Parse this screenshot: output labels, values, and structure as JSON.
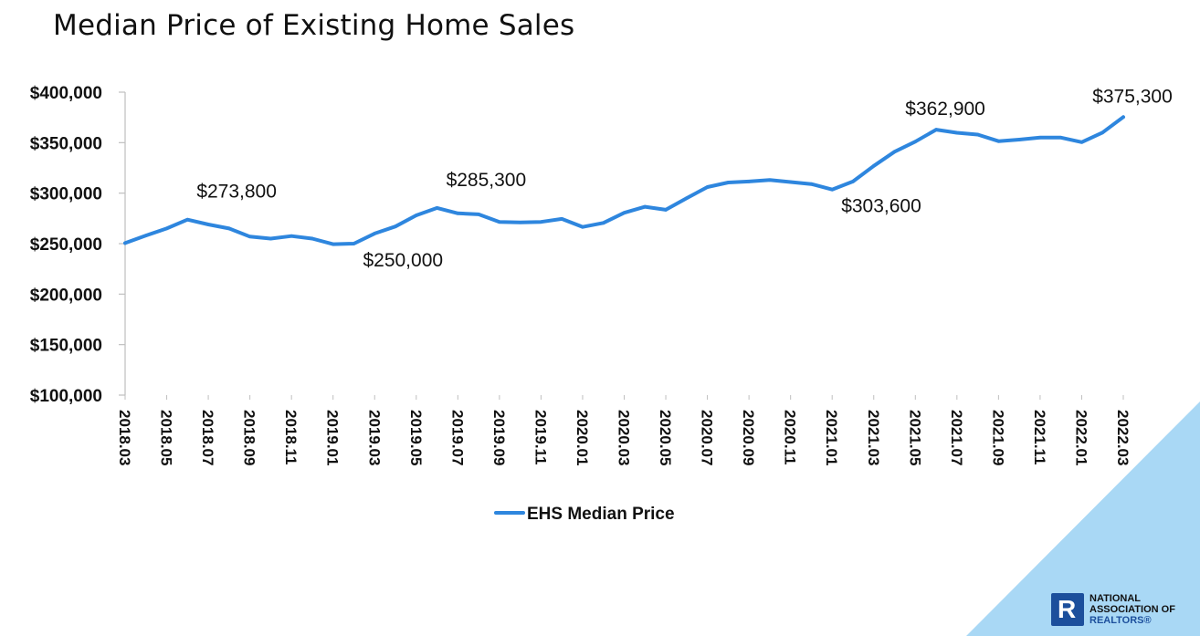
{
  "title": "Median Price of Existing Home Sales",
  "colors": {
    "series": "#2e86de",
    "corner": "#a9d8f5",
    "logo": "#1c4f9c",
    "logo_text_dark": "#111111",
    "logo_text_blue": "#1c4f9c"
  },
  "logo": {
    "line1": "NATIONAL",
    "line2": "ASSOCIATION OF",
    "line3": "REALTORS®"
  },
  "chart_data": {
    "type": "line",
    "title": "Median Price of Existing Home Sales",
    "ylim": [
      100000,
      400000
    ],
    "yticks": [
      {
        "value": 400000,
        "label": "$400,000"
      },
      {
        "value": 350000,
        "label": "$350,000"
      },
      {
        "value": 300000,
        "label": "$300,000"
      },
      {
        "value": 250000,
        "label": "$250,000"
      },
      {
        "value": 200000,
        "label": "$200,000"
      },
      {
        "value": 150000,
        "label": "$150,000"
      },
      {
        "value": 100000,
        "label": "$100,000"
      }
    ],
    "x": [
      "2018.03",
      "2018.04",
      "2018.05",
      "2018.06",
      "2018.07",
      "2018.08",
      "2018.09",
      "2018.10",
      "2018.11",
      "2018.12",
      "2019.01",
      "2019.02",
      "2019.03",
      "2019.04",
      "2019.05",
      "2019.06",
      "2019.07",
      "2019.08",
      "2019.09",
      "2019.10",
      "2019.11",
      "2019.12",
      "2020.01",
      "2020.02",
      "2020.03",
      "2020.04",
      "2020.05",
      "2020.06",
      "2020.07",
      "2020.08",
      "2020.09",
      "2020.10",
      "2020.11",
      "2020.12",
      "2021.01",
      "2021.02",
      "2021.03",
      "2021.04",
      "2021.05",
      "2021.06",
      "2021.07",
      "2021.08",
      "2021.09",
      "2021.10",
      "2021.11",
      "2021.12",
      "2022.01",
      "2022.02",
      "2022.03"
    ],
    "xtick_labels": [
      "2018.03",
      "2018.05",
      "2018.07",
      "2018.09",
      "2018.11",
      "2019.01",
      "2019.03",
      "2019.05",
      "2019.07",
      "2019.09",
      "2019.11",
      "2020.01",
      "2020.03",
      "2020.05",
      "2020.07",
      "2020.09",
      "2020.11",
      "2021.01",
      "2021.03",
      "2021.05",
      "2021.07",
      "2021.09",
      "2021.11",
      "2022.01",
      "2022.03"
    ],
    "series": [
      {
        "name": "EHS Median Price",
        "color": "#2e86de",
        "values": [
          250500,
          258000,
          265000,
          273800,
          269000,
          265000,
          257000,
          255000,
          257500,
          255000,
          249500,
          250000,
          260000,
          267000,
          278000,
          285300,
          280000,
          279000,
          271500,
          271000,
          271500,
          274500,
          266500,
          270500,
          280500,
          286500,
          283500,
          295000,
          306000,
          310500,
          311500,
          313000,
          311000,
          309000,
          303600,
          311500,
          327000,
          341000,
          351000,
          362900,
          359800,
          358000,
          351500,
          353000,
          355000,
          355000,
          350500,
          360000,
          375300
        ]
      }
    ],
    "annotations": [
      {
        "x": "2018.06",
        "value": 273800,
        "label": "$273,800",
        "placement": "right-above"
      },
      {
        "x": "2019.02",
        "value": 250000,
        "label": "$250,000",
        "placement": "right-below"
      },
      {
        "x": "2019.06",
        "value": 285300,
        "label": "$285,300",
        "placement": "right-above"
      },
      {
        "x": "2021.01",
        "value": 303600,
        "label": "$303,600",
        "placement": "right-below"
      },
      {
        "x": "2021.06",
        "value": 362900,
        "label": "$362,900",
        "placement": "above"
      },
      {
        "x": "2022.03",
        "value": 375300,
        "label": "$375,300",
        "placement": "above"
      }
    ],
    "legend_placement": "bottom",
    "grid": false
  }
}
